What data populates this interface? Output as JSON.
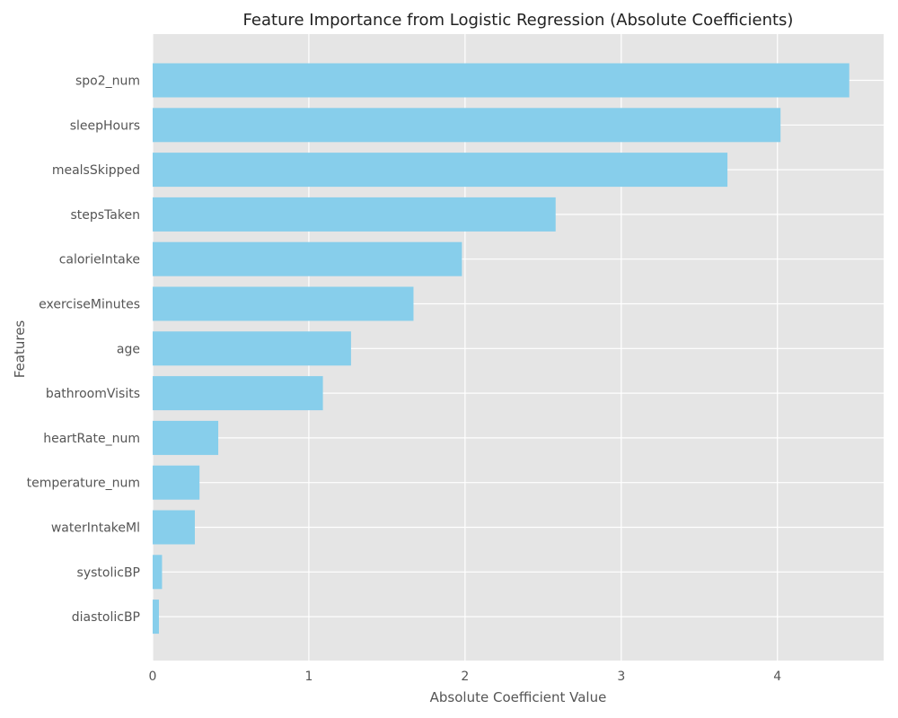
{
  "chart_data": {
    "type": "bar",
    "orientation": "horizontal",
    "title": "Feature Importance from Logistic Regression (Absolute Coefficients)",
    "xlabel": "Absolute Coefficient Value",
    "ylabel": "Features",
    "categories": [
      "spo2_num",
      "sleepHours",
      "mealsSkipped",
      "stepsTaken",
      "calorieIntake",
      "exerciseMinutes",
      "age",
      "bathroomVisits",
      "heartRate_num",
      "temperature_num",
      "waterIntakeMl",
      "systolicBP",
      "diastolicBP"
    ],
    "values": [
      4.46,
      4.02,
      3.68,
      2.58,
      1.98,
      1.67,
      1.27,
      1.09,
      0.42,
      0.3,
      0.27,
      0.06,
      0.04
    ],
    "xticks": [
      "0",
      "1",
      "2",
      "3",
      "4"
    ],
    "xlim": [
      0,
      4.68
    ],
    "grid": true,
    "bar_color": "#87CEEB",
    "background_color": "#E5E5E5"
  }
}
